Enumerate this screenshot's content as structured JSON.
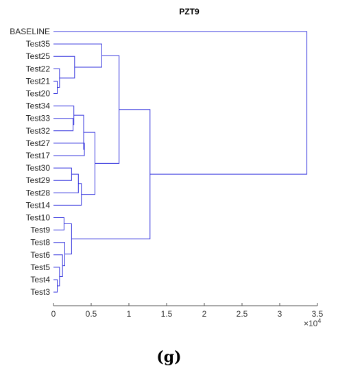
{
  "chart_data": {
    "type": "dendrogram",
    "title": "PZT9",
    "xlabel": "",
    "ylabel": "",
    "xlim": [
      0,
      35000
    ],
    "x_ticks": [
      0,
      0.5,
      1,
      1.5,
      2,
      2.5,
      3,
      3.5
    ],
    "x_tick_labels": [
      "0",
      "0.5",
      "1",
      "1.5",
      "2",
      "2.5",
      "3",
      "3.5"
    ],
    "x_multiplier_base": "×10",
    "x_multiplier_exponent": "4",
    "grid": false,
    "leaves": [
      "BASELINE",
      "Test35",
      "Test25",
      "Test22",
      "Test21",
      "Test20",
      "Test34",
      "Test33",
      "Test32",
      "Test27",
      "Test17",
      "Test30",
      "Test29",
      "Test28",
      "Test14",
      "Test10",
      "Test9",
      "Test8",
      "Test6",
      "Test5",
      "Test4",
      "Test3"
    ],
    "merges": [
      {
        "a": "L:Test33",
        "b": "L:Test32",
        "height": 2600
      },
      {
        "a": "L:Test34",
        "b": "N:0",
        "height": 2700
      },
      {
        "a": "L:Test21",
        "b": "L:Test20",
        "height": 500
      },
      {
        "a": "L:Test22",
        "b": "N:2",
        "height": 800
      },
      {
        "a": "L:Test25",
        "b": "N:3",
        "height": 2800
      },
      {
        "a": "L:Test35",
        "b": "N:4",
        "height": 6400
      },
      {
        "a": "L:Test27",
        "b": "L:Test17",
        "height": 4100
      },
      {
        "a": "N:1",
        "b": "N:6",
        "height": 4000
      },
      {
        "a": "L:Test30",
        "b": "L:Test29",
        "height": 2400
      },
      {
        "a": "N:8",
        "b": "L:Test28",
        "height": 3300
      },
      {
        "a": "N:9",
        "b": "L:Test14",
        "height": 3700
      },
      {
        "a": "N:7",
        "b": "N:10",
        "height": 5500
      },
      {
        "a": "N:5",
        "b": "N:11",
        "height": 8700
      },
      {
        "a": "L:Test10",
        "b": "L:Test9",
        "height": 1400
      },
      {
        "a": "L:Test4",
        "b": "L:Test3",
        "height": 500
      },
      {
        "a": "L:Test5",
        "b": "N:14",
        "height": 800
      },
      {
        "a": "L:Test6",
        "b": "N:15",
        "height": 1200
      },
      {
        "a": "L:Test8",
        "b": "N:16",
        "height": 1500
      },
      {
        "a": "N:13",
        "b": "N:17",
        "height": 2400
      },
      {
        "a": "N:12",
        "b": "N:18",
        "height": 12800
      },
      {
        "a": "L:BASELINE",
        "b": "N:19",
        "height": 33600
      }
    ],
    "line_color": "#3333dd"
  },
  "caption": "(g)"
}
